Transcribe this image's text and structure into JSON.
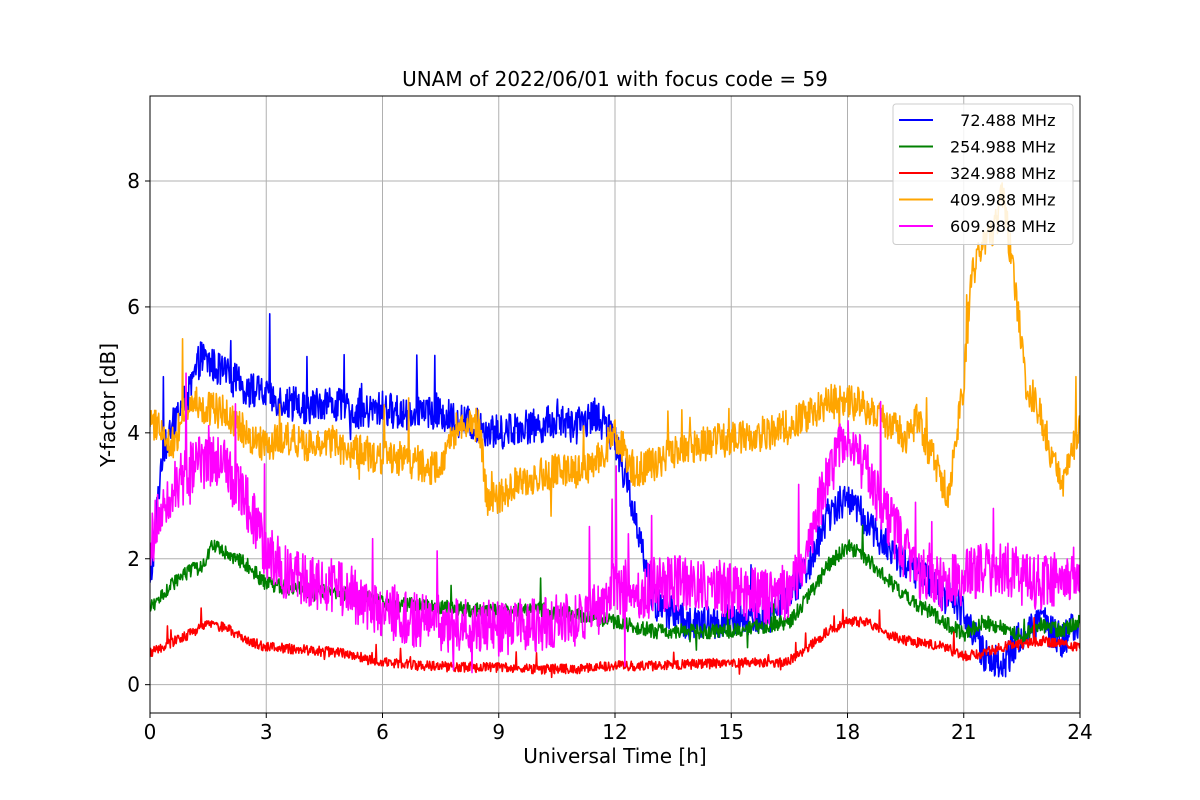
{
  "chart_data": {
    "type": "line",
    "title": "UNAM of 2022/06/01 with focus code = 59",
    "xlabel": "Universal Time [h]",
    "ylabel": "Y-factor [dB]",
    "xlim": [
      0,
      24
    ],
    "ylim": [
      -0.45,
      9.35
    ],
    "xticks": [
      0,
      3,
      6,
      9,
      12,
      15,
      18,
      21,
      24
    ],
    "yticks": [
      0,
      2,
      4,
      6,
      8
    ],
    "grid": true,
    "legend_position": "top-right",
    "series": [
      {
        "name": "  72.488 MHz",
        "color": "#0000ff",
        "noise": 0.28,
        "x": [
          0,
          0.3,
          0.7,
          1.0,
          1.3,
          1.8,
          2.5,
          3.0,
          3.5,
          4.0,
          4.5,
          5.0,
          5.5,
          6.0,
          6.5,
          7.0,
          7.5,
          8.0,
          8.5,
          9.0,
          9.5,
          10.0,
          10.5,
          11.0,
          11.5,
          12.0,
          12.3,
          12.6,
          13.0,
          14.0,
          15.0,
          16.0,
          16.5,
          17.0,
          17.5,
          18.0,
          18.5,
          19.0,
          19.5,
          20.0,
          20.5,
          21.0,
          21.5,
          22.0,
          22.5,
          23.0,
          23.5,
          24.0
        ],
        "y": [
          1.5,
          3.6,
          4.3,
          4.6,
          5.2,
          5.0,
          4.7,
          4.6,
          4.5,
          4.4,
          4.5,
          4.4,
          4.3,
          4.4,
          4.3,
          4.4,
          4.3,
          4.2,
          4.1,
          4.0,
          4.1,
          4.1,
          4.2,
          4.1,
          4.3,
          3.9,
          3.2,
          2.5,
          1.3,
          0.95,
          1.0,
          1.1,
          1.4,
          1.9,
          2.7,
          3.0,
          2.6,
          2.2,
          1.9,
          1.7,
          1.4,
          1.2,
          0.5,
          0.3,
          0.8,
          1.0,
          0.7,
          1.0
        ]
      },
      {
        "name": "254.988 MHz",
        "color": "#008000",
        "noise": 0.12,
        "x": [
          0,
          0.5,
          1.0,
          1.3,
          1.6,
          2.0,
          2.5,
          3.0,
          4.0,
          5.0,
          6.0,
          7.0,
          8.0,
          9.0,
          10.0,
          11.0,
          12.0,
          13.0,
          14.0,
          15.0,
          16.0,
          16.5,
          17.0,
          17.5,
          18.0,
          18.5,
          19.0,
          19.5,
          20.0,
          20.5,
          21.0,
          21.5,
          22.0,
          22.5,
          23.0,
          23.5,
          24.0
        ],
        "y": [
          1.2,
          1.55,
          1.8,
          1.85,
          2.2,
          2.1,
          1.9,
          1.6,
          1.5,
          1.45,
          1.3,
          1.25,
          1.2,
          1.15,
          1.2,
          1.1,
          1.0,
          0.85,
          0.85,
          0.85,
          0.95,
          1.0,
          1.4,
          1.9,
          2.2,
          2.0,
          1.7,
          1.4,
          1.2,
          1.0,
          0.8,
          1.0,
          0.9,
          0.75,
          0.95,
          0.85,
          1.0
        ]
      },
      {
        "name": "324.988 MHz",
        "color": "#ff0000",
        "noise": 0.08,
        "x": [
          0,
          0.5,
          1.0,
          1.5,
          2.0,
          2.5,
          3.0,
          4.0,
          5.0,
          6.0,
          7.0,
          8.0,
          9.0,
          10.0,
          11.0,
          12.0,
          13.0,
          14.0,
          15.0,
          16.0,
          16.5,
          17.0,
          17.5,
          18.0,
          18.5,
          19.0,
          19.5,
          20.0,
          20.5,
          21.0,
          21.5,
          22.0,
          22.5,
          23.0,
          23.5,
          24.0
        ],
        "y": [
          0.5,
          0.65,
          0.8,
          0.95,
          0.9,
          0.7,
          0.6,
          0.55,
          0.5,
          0.35,
          0.3,
          0.28,
          0.27,
          0.25,
          0.25,
          0.3,
          0.3,
          0.32,
          0.35,
          0.35,
          0.38,
          0.6,
          0.85,
          1.0,
          1.0,
          0.8,
          0.7,
          0.65,
          0.6,
          0.45,
          0.5,
          0.6,
          0.65,
          0.7,
          0.65,
          0.6
        ]
      },
      {
        "name": "409.988 MHz",
        "color": "#ffa500",
        "noise": 0.28,
        "x": [
          0,
          0.3,
          0.6,
          1.0,
          1.5,
          2.0,
          2.5,
          3.0,
          3.5,
          4.0,
          4.5,
          5.0,
          5.5,
          6.0,
          6.5,
          7.0,
          7.5,
          8.0,
          8.5,
          8.7,
          9.0,
          9.5,
          10.0,
          10.5,
          11.0,
          11.5,
          12.0,
          12.5,
          13.0,
          13.5,
          14.0,
          15.0,
          16.0,
          16.5,
          17.0,
          17.5,
          18.0,
          18.5,
          19.0,
          19.5,
          19.8,
          20.2,
          20.6,
          21.0,
          21.2,
          21.5,
          21.8,
          22.0,
          22.3,
          22.6,
          23.0,
          23.3,
          23.6,
          24.0
        ],
        "y": [
          4.2,
          4.0,
          3.8,
          4.5,
          4.4,
          4.3,
          4.0,
          3.8,
          3.9,
          3.8,
          3.9,
          3.7,
          3.7,
          3.6,
          3.6,
          3.5,
          3.4,
          4.2,
          4.1,
          2.9,
          3.0,
          3.2,
          3.3,
          3.4,
          3.4,
          3.5,
          4.0,
          3.4,
          3.5,
          3.7,
          3.8,
          3.9,
          4.0,
          4.1,
          4.3,
          4.5,
          4.5,
          4.4,
          4.2,
          3.9,
          4.2,
          3.6,
          3.0,
          4.8,
          6.5,
          7.0,
          7.2,
          7.8,
          6.5,
          4.8,
          4.3,
          3.5,
          3.2,
          4.2
        ]
      },
      {
        "name": "609.988 MHz",
        "color": "#ff00ff",
        "noise": 0.45,
        "x": [
          0,
          0.3,
          0.7,
          1.0,
          1.5,
          2.0,
          2.5,
          3.0,
          3.5,
          4.0,
          5.0,
          6.0,
          7.0,
          8.0,
          9.0,
          10.0,
          11.0,
          11.5,
          12.0,
          12.5,
          13.0,
          14.0,
          15.0,
          16.0,
          16.5,
          17.0,
          17.5,
          18.0,
          18.5,
          19.0,
          19.5,
          20.0,
          20.5,
          21.0,
          21.5,
          22.0,
          22.5,
          23.0,
          23.5,
          24.0
        ],
        "y": [
          2.2,
          2.9,
          3.2,
          3.4,
          3.6,
          3.4,
          2.9,
          2.1,
          1.8,
          1.7,
          1.5,
          1.2,
          1.0,
          0.95,
          0.9,
          0.95,
          1.0,
          1.2,
          1.5,
          1.4,
          1.6,
          1.6,
          1.5,
          1.4,
          1.5,
          2.2,
          3.4,
          3.9,
          3.4,
          2.7,
          2.1,
          1.7,
          1.6,
          1.7,
          1.8,
          1.9,
          1.7,
          1.6,
          1.7,
          1.9
        ]
      }
    ]
  }
}
